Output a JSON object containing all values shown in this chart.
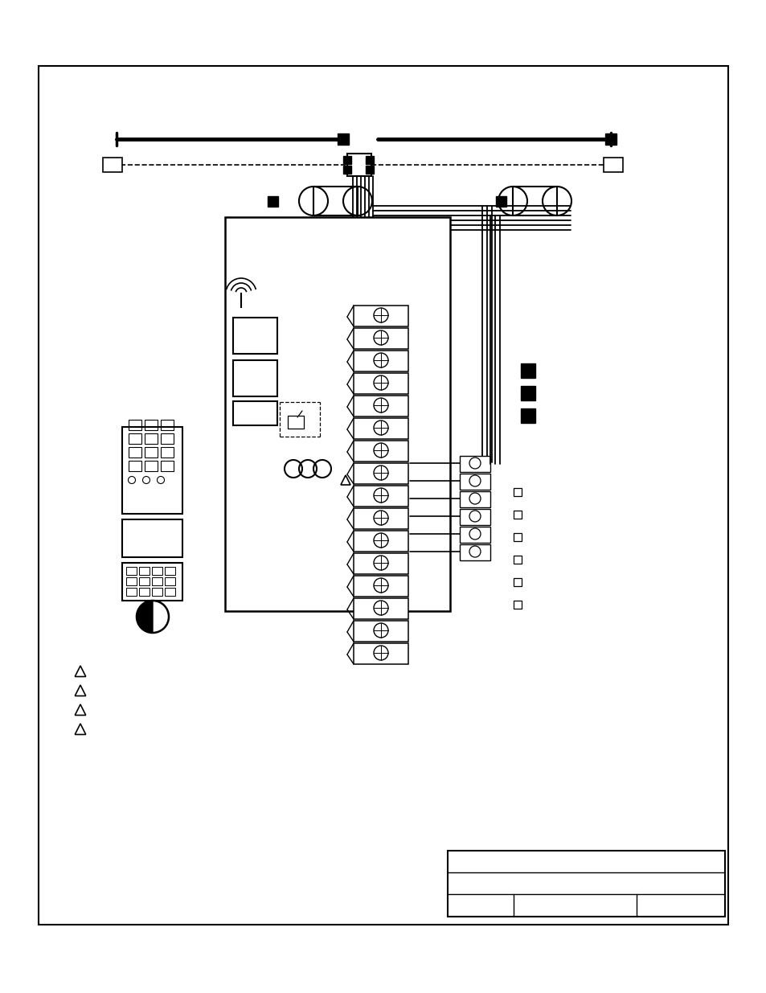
{
  "background_color": "#ffffff",
  "line_color": "#000000",
  "figure_size": [
    9.54,
    12.35
  ],
  "dpi": 100
}
